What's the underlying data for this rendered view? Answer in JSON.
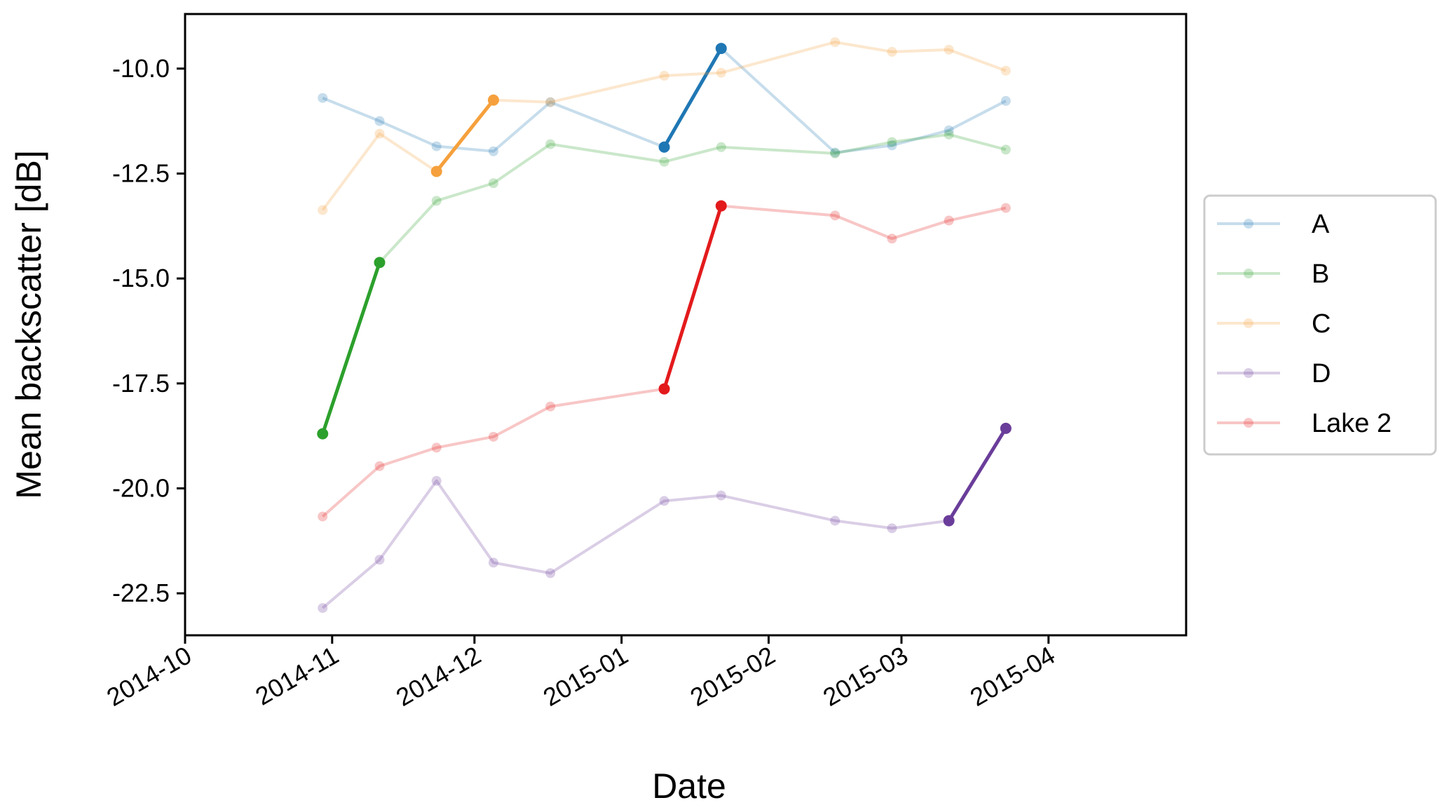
{
  "chart_data": {
    "type": "line",
    "title": "",
    "xlabel": "Date",
    "ylabel": "Mean backscatter [dB]",
    "xlim": [
      "2014-10-01",
      "2015-04-30"
    ],
    "ylim": [
      -23.5,
      -8.7
    ],
    "x_ticks": [
      "2014-10",
      "2014-11",
      "2014-12",
      "2015-01",
      "2015-02",
      "2015-03",
      "2015-04"
    ],
    "y_ticks": [
      "-10.0",
      "-12.5",
      "-15.0",
      "-17.5",
      "-20.0",
      "-22.5"
    ],
    "y_tick_values": [
      -10.0,
      -12.5,
      -15.0,
      -17.5,
      -20.0,
      -22.5
    ],
    "grid": false,
    "legend_position": "right",
    "x": [
      "2014-10-30",
      "2014-11-11",
      "2014-11-23",
      "2014-12-05",
      "2014-12-17",
      "2015-01-10",
      "2015-01-22",
      "2015-02-15",
      "2015-02-27",
      "2015-03-11",
      "2015-03-23"
    ],
    "series": [
      {
        "name": "A",
        "color": "#1f77b4",
        "values": [
          -10.7,
          -11.25,
          -11.85,
          -11.97,
          -10.8,
          -11.87,
          -9.52,
          -12.0,
          -11.83,
          -11.47,
          -10.77
        ],
        "highlight": [
          5,
          6
        ]
      },
      {
        "name": "B",
        "color": "#2ca02c",
        "values": [
          -18.7,
          -14.62,
          -13.15,
          -12.73,
          -11.8,
          -12.22,
          -11.87,
          -12.02,
          -11.75,
          -11.57,
          -11.93
        ],
        "highlight": [
          0,
          1
        ]
      },
      {
        "name": "C",
        "color": "#f5a03c",
        "values": [
          -13.37,
          -11.55,
          -12.45,
          -10.75,
          -10.8,
          -10.17,
          -10.1,
          -9.37,
          -9.6,
          -9.55,
          -10.05
        ],
        "highlight": [
          2,
          3
        ]
      },
      {
        "name": "D",
        "color": "#6a3d9a",
        "values": [
          -22.85,
          -21.7,
          -19.82,
          -21.77,
          -22.02,
          -20.3,
          -20.17,
          -20.77,
          -20.95,
          -20.77,
          -18.57
        ],
        "highlight": [
          9,
          10
        ]
      },
      {
        "name": "Lake 2",
        "color": "#e31a1c",
        "values": [
          -20.67,
          -19.47,
          -19.03,
          -18.77,
          -18.05,
          -17.63,
          -13.27,
          -13.5,
          -14.05,
          -13.62,
          -13.32
        ],
        "highlight": [
          5,
          6
        ]
      }
    ]
  }
}
